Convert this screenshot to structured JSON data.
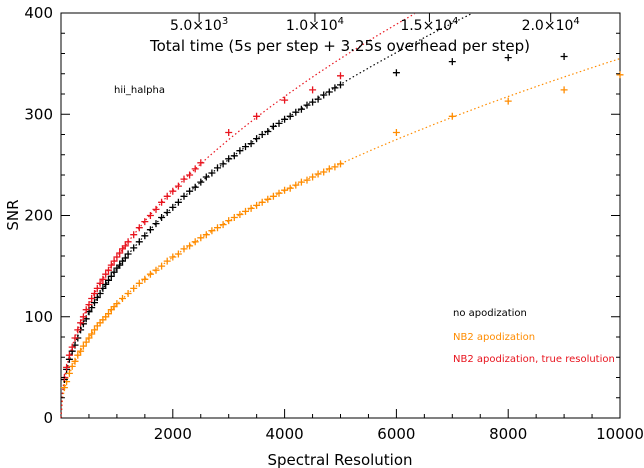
{
  "chart_data": {
    "type": "scatter",
    "xlabel": "Spectral Resolution",
    "ylabel": "SNR",
    "xlim": [
      0,
      10000
    ],
    "ylim": [
      0,
      400
    ],
    "xticks": [
      2000,
      4000,
      6000,
      8000,
      10000
    ],
    "yticks": [
      0,
      100,
      200,
      300,
      400
    ],
    "grid": false,
    "annotation": "hii_halpha",
    "top_axis": {
      "title": "Total time (5s per step + 3.25s overhead per step)",
      "ticks": [
        {
          "x": 2471,
          "label": "5.0×10",
          "exp": "3"
        },
        {
          "x": 4543,
          "label": "1.0×10",
          "exp": "4"
        },
        {
          "x": 6591,
          "label": "1.5×10",
          "exp": "4"
        },
        {
          "x": 8760,
          "label": "2.0×10",
          "exp": "4"
        }
      ]
    },
    "legend_position": "bottom-right",
    "series": [
      {
        "name": "no apodization",
        "color": "#000000",
        "coef": 4.66,
        "points": [
          [
            60,
            38
          ],
          [
            100,
            48
          ],
          [
            150,
            58
          ],
          [
            200,
            66
          ],
          [
            250,
            72
          ],
          [
            300,
            79
          ],
          [
            350,
            87
          ],
          [
            400,
            93
          ],
          [
            450,
            98
          ],
          [
            500,
            105
          ],
          [
            550,
            109
          ],
          [
            600,
            114
          ],
          [
            650,
            119
          ],
          [
            700,
            123
          ],
          [
            750,
            128
          ],
          [
            800,
            132
          ],
          [
            850,
            136
          ],
          [
            900,
            140
          ],
          [
            950,
            144
          ],
          [
            1000,
            148
          ],
          [
            1050,
            151
          ],
          [
            1100,
            155
          ],
          [
            1150,
            158
          ],
          [
            1200,
            162
          ],
          [
            1300,
            168
          ],
          [
            1400,
            174
          ],
          [
            1500,
            180
          ],
          [
            1600,
            186
          ],
          [
            1700,
            192
          ],
          [
            1800,
            198
          ],
          [
            1900,
            203
          ],
          [
            2000,
            208
          ],
          [
            2100,
            213
          ],
          [
            2200,
            219
          ],
          [
            2300,
            224
          ],
          [
            2400,
            228
          ],
          [
            2500,
            233
          ],
          [
            2600,
            238
          ],
          [
            2700,
            242
          ],
          [
            2800,
            247
          ],
          [
            2900,
            251
          ],
          [
            3000,
            256
          ],
          [
            3100,
            259
          ],
          [
            3200,
            264
          ],
          [
            3300,
            268
          ],
          [
            3400,
            271
          ],
          [
            3500,
            276
          ],
          [
            3600,
            280
          ],
          [
            3700,
            283
          ],
          [
            3800,
            288
          ],
          [
            3900,
            291
          ],
          [
            4000,
            295
          ],
          [
            4100,
            298
          ],
          [
            4200,
            302
          ],
          [
            4300,
            305
          ],
          [
            4400,
            309
          ],
          [
            4500,
            312
          ],
          [
            4600,
            315
          ],
          [
            4700,
            319
          ],
          [
            4800,
            322
          ],
          [
            4900,
            326
          ],
          [
            5000,
            329
          ],
          [
            6000,
            341
          ],
          [
            7000,
            352
          ],
          [
            8000,
            356
          ],
          [
            9000,
            357
          ]
        ]
      },
      {
        "name": "NB2 apodization",
        "color": "#ff8c00",
        "coef": 3.55,
        "points": [
          [
            60,
            30
          ],
          [
            100,
            36
          ],
          [
            150,
            44
          ],
          [
            200,
            51
          ],
          [
            250,
            56
          ],
          [
            300,
            62
          ],
          [
            350,
            66
          ],
          [
            400,
            71
          ],
          [
            450,
            75
          ],
          [
            500,
            79
          ],
          [
            550,
            83
          ],
          [
            600,
            87
          ],
          [
            650,
            91
          ],
          [
            700,
            94
          ],
          [
            750,
            97
          ],
          [
            800,
            100
          ],
          [
            850,
            103
          ],
          [
            900,
            107
          ],
          [
            950,
            110
          ],
          [
            1000,
            113
          ],
          [
            1100,
            118
          ],
          [
            1200,
            123
          ],
          [
            1300,
            128
          ],
          [
            1400,
            133
          ],
          [
            1500,
            137
          ],
          [
            1600,
            142
          ],
          [
            1700,
            146
          ],
          [
            1800,
            150
          ],
          [
            1900,
            155
          ],
          [
            2000,
            159
          ],
          [
            2100,
            162
          ],
          [
            2200,
            167
          ],
          [
            2300,
            170
          ],
          [
            2400,
            174
          ],
          [
            2500,
            178
          ],
          [
            2600,
            181
          ],
          [
            2700,
            185
          ],
          [
            2800,
            188
          ],
          [
            2900,
            191
          ],
          [
            3000,
            195
          ],
          [
            3100,
            198
          ],
          [
            3200,
            201
          ],
          [
            3300,
            204
          ],
          [
            3400,
            207
          ],
          [
            3500,
            210
          ],
          [
            3600,
            213
          ],
          [
            3700,
            216
          ],
          [
            3800,
            219
          ],
          [
            3900,
            222
          ],
          [
            4000,
            225
          ],
          [
            4100,
            227
          ],
          [
            4200,
            230
          ],
          [
            4300,
            233
          ],
          [
            4400,
            235
          ],
          [
            4500,
            238
          ],
          [
            4600,
            241
          ],
          [
            4700,
            243
          ],
          [
            4800,
            246
          ],
          [
            4900,
            248
          ],
          [
            5000,
            251
          ],
          [
            6000,
            282
          ],
          [
            7000,
            298
          ],
          [
            8000,
            313
          ],
          [
            9000,
            324
          ],
          [
            10000,
            339
          ]
        ]
      },
      {
        "name": "NB2 apodization, true resolution",
        "color": "#e8141e",
        "coef": 5.02,
        "points": [
          [
            60,
            40
          ],
          [
            100,
            50
          ],
          [
            150,
            62
          ],
          [
            200,
            70
          ],
          [
            250,
            79
          ],
          [
            300,
            87
          ],
          [
            350,
            94
          ],
          [
            400,
            100
          ],
          [
            450,
            107
          ],
          [
            500,
            112
          ],
          [
            550,
            118
          ],
          [
            600,
            123
          ],
          [
            650,
            128
          ],
          [
            700,
            133
          ],
          [
            750,
            137
          ],
          [
            800,
            142
          ],
          [
            850,
            146
          ],
          [
            900,
            151
          ],
          [
            950,
            155
          ],
          [
            1000,
            159
          ],
          [
            1050,
            163
          ],
          [
            1100,
            167
          ],
          [
            1150,
            170
          ],
          [
            1200,
            174
          ],
          [
            1300,
            181
          ],
          [
            1400,
            188
          ],
          [
            1500,
            194
          ],
          [
            1600,
            200
          ],
          [
            1700,
            206
          ],
          [
            1800,
            213
          ],
          [
            1900,
            219
          ],
          [
            2000,
            224
          ],
          [
            2100,
            229
          ],
          [
            2200,
            236
          ],
          [
            2300,
            240
          ],
          [
            2400,
            246
          ],
          [
            2500,
            252
          ],
          [
            3000,
            282
          ],
          [
            3500,
            298
          ],
          [
            4000,
            314
          ],
          [
            4500,
            324
          ],
          [
            5000,
            338
          ]
        ]
      }
    ]
  }
}
